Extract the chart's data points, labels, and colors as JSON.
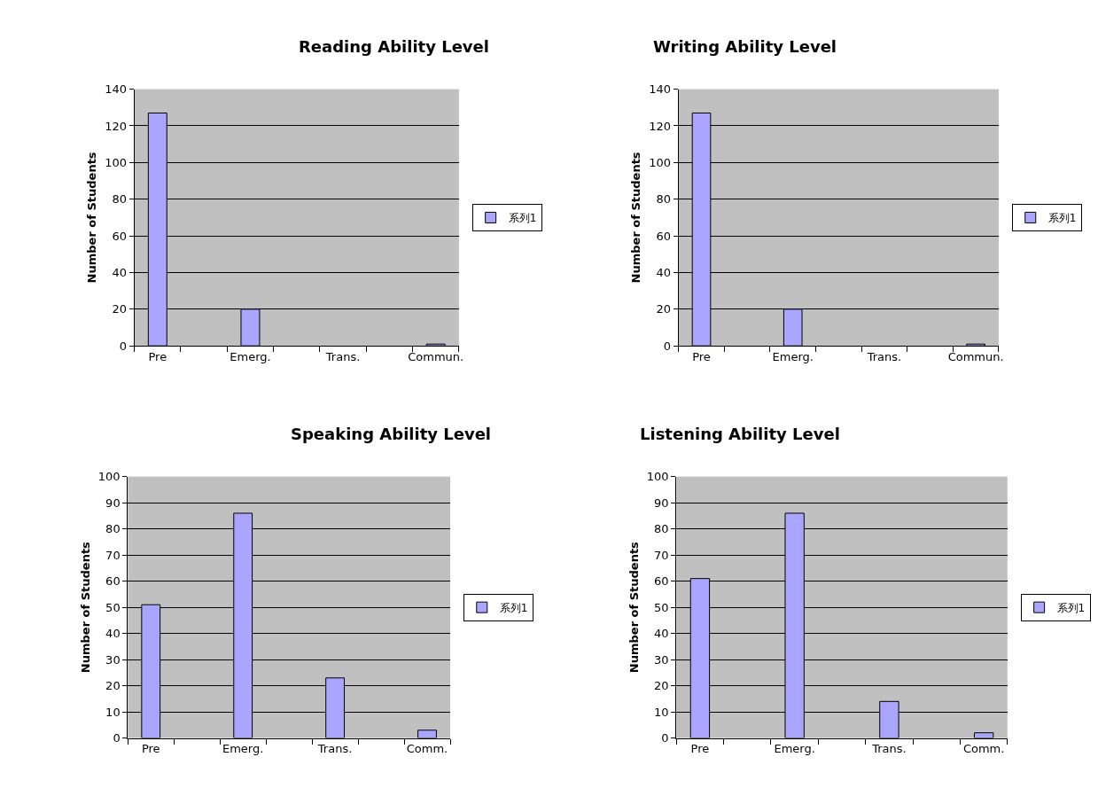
{
  "chart_data": [
    {
      "type": "bar",
      "title": "Reading Ability Level",
      "ylabel": "Number of Students",
      "categories": [
        "Pre",
        null,
        "Emerg.",
        null,
        "Trans.",
        null,
        "Commun."
      ],
      "series": [
        {
          "name": "系列1",
          "color": "#aaa6ff",
          "values": [
            127,
            null,
            20,
            null,
            null,
            null,
            1
          ]
        }
      ],
      "ylim": [
        0,
        140
      ],
      "yticks": [
        0,
        20,
        40,
        60,
        80,
        100,
        120,
        140
      ],
      "grid": "y",
      "legend": "right"
    },
    {
      "type": "bar",
      "title": "Writing Ability Level",
      "ylabel": "Number of Students",
      "categories": [
        "Pre",
        null,
        "Emerg.",
        null,
        "Trans.",
        null,
        "Commun."
      ],
      "series": [
        {
          "name": "系列1",
          "color": "#aaa6ff",
          "values": [
            127,
            null,
            20,
            null,
            null,
            null,
            1
          ]
        }
      ],
      "ylim": [
        0,
        140
      ],
      "yticks": [
        0,
        20,
        40,
        60,
        80,
        100,
        120,
        140
      ],
      "grid": "y",
      "legend": "right"
    },
    {
      "type": "bar",
      "title": "Speaking Ability Level",
      "ylabel": "Number of Students",
      "categories": [
        "Pre",
        null,
        "Emerg.",
        null,
        "Trans.",
        null,
        "Comm."
      ],
      "series": [
        {
          "name": "系列1",
          "color": "#aaa6ff",
          "values": [
            51,
            null,
            86,
            null,
            23,
            null,
            3
          ]
        }
      ],
      "ylim": [
        0,
        100
      ],
      "yticks": [
        0,
        10,
        20,
        30,
        40,
        50,
        60,
        70,
        80,
        90,
        100
      ],
      "grid": "y",
      "legend": "right"
    },
    {
      "type": "bar",
      "title": "Listening Ability Level",
      "ylabel": "Number of Students",
      "categories": [
        "Pre",
        null,
        "Emerg.",
        null,
        "Trans.",
        null,
        "Comm."
      ],
      "series": [
        {
          "name": "系列1",
          "color": "#aaa6ff",
          "values": [
            61,
            null,
            86,
            null,
            14,
            null,
            2
          ]
        }
      ],
      "ylim": [
        0,
        100
      ],
      "yticks": [
        0,
        10,
        20,
        30,
        40,
        50,
        60,
        70,
        80,
        90,
        100
      ],
      "grid": "y",
      "legend": "right"
    }
  ]
}
